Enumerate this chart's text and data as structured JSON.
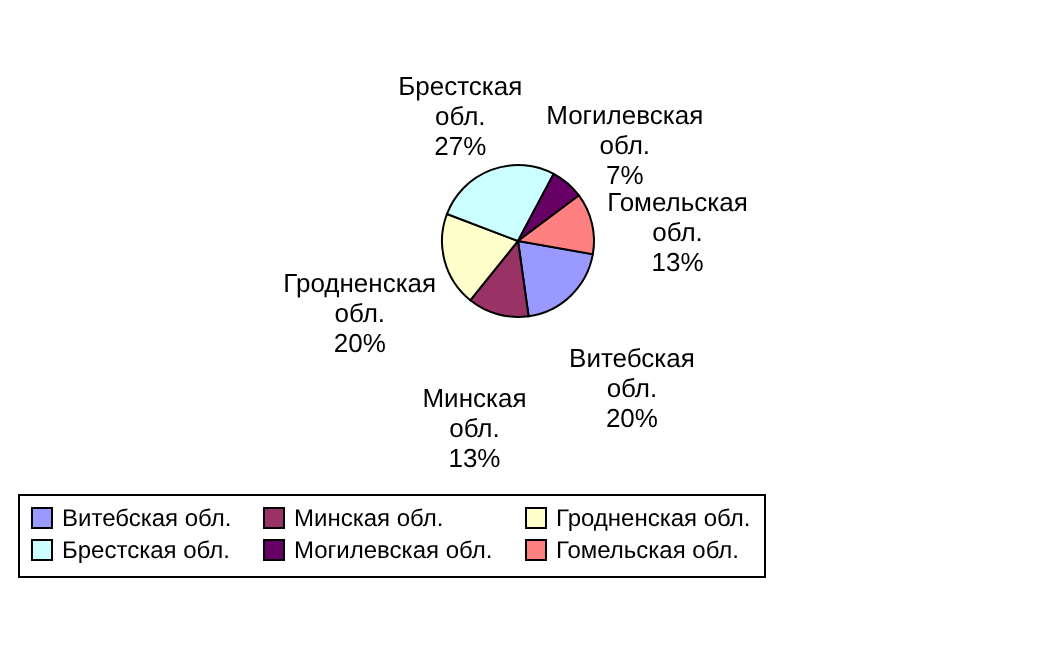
{
  "chart_data": {
    "type": "pie",
    "categories": [
      "Витебская обл.",
      "Минская обл.",
      "Гродненская обл.",
      "Брестская обл.",
      "Могилевская обл.",
      "Гомельская обл."
    ],
    "values": [
      20,
      13,
      20,
      27,
      7,
      13
    ],
    "value_labels": [
      "20%",
      "13%",
      "20%",
      "27%",
      "7%",
      "13%"
    ],
    "colors": [
      "#9999ff",
      "#993366",
      "#ffffcc",
      "#ccffff",
      "#660066",
      "#ff8080"
    ],
    "legend": "bottom"
  }
}
